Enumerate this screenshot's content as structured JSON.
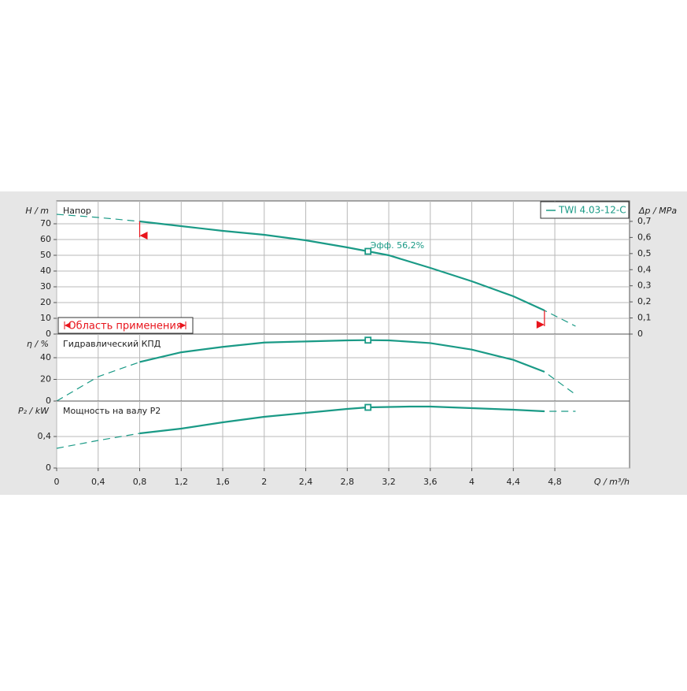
{
  "chart_data": [
    {
      "type": "line",
      "title": "Напор",
      "ylabel": "H / m",
      "y2label": "Δp / MPa",
      "x": [
        0,
        0.4,
        0.8,
        1.2,
        1.6,
        2.0,
        2.4,
        2.8,
        3.0,
        3.2,
        3.6,
        4.0,
        4.4,
        4.7,
        5.0
      ],
      "series": [
        {
          "name": "TWI 4.03-12-C",
          "color": "#1a9a86",
          "values": [
            76,
            74,
            71.5,
            68.5,
            65.5,
            63,
            59.5,
            55,
            52.5,
            50,
            42,
            33.5,
            24,
            15,
            5
          ]
        }
      ],
      "ylim": [
        0,
        84.5
      ],
      "yticks": [
        0,
        10,
        20,
        30,
        40,
        50,
        60,
        70
      ],
      "y2lim": [
        0,
        0.827
      ],
      "y2ticks": [
        0,
        {
          "value": 0.1,
          "label": "0,1"
        },
        {
          "value": 0.2,
          "label": "0,2"
        },
        {
          "value": 0.3,
          "label": "0,3"
        },
        {
          "value": 0.4,
          "label": "0,4"
        },
        {
          "value": 0.5,
          "label": "0,5"
        },
        {
          "value": 0.6,
          "label": "0,6"
        },
        {
          "value": 0.7,
          "label": "0,7"
        }
      ],
      "operating_range": [
        0.8,
        4.7
      ],
      "range_label": "Область применения",
      "duty_point": {
        "x": 3.0,
        "y": 52.5
      },
      "annotation": "Эфф.  56,2%",
      "grid": true,
      "legend": "top-right"
    },
    {
      "type": "line",
      "title": "Гидравлический КПД",
      "ylabel": "η / %",
      "x": [
        0,
        0.4,
        0.8,
        1.2,
        1.6,
        2.0,
        2.4,
        2.8,
        3.0,
        3.2,
        3.6,
        4.0,
        4.4,
        4.7,
        5.0
      ],
      "series": [
        {
          "color": "#1a9a86",
          "values": [
            0,
            22.5,
            36,
            45,
            50,
            54,
            55,
            56,
            56.2,
            56,
            53.5,
            47.5,
            38,
            27,
            6
          ]
        }
      ],
      "ylim": [
        0,
        61.8
      ],
      "yticks": [
        0,
        20,
        40
      ],
      "duty_point": {
        "x": 3.0,
        "y": 56.2
      },
      "grid": true
    },
    {
      "type": "line",
      "title": "Мощность на валу P2",
      "ylabel": "P₂ / kW",
      "xlabel": "Q / m³/h",
      "x": [
        0,
        0.4,
        0.8,
        1.2,
        1.6,
        2.0,
        2.4,
        2.8,
        3.0,
        3.4,
        3.6,
        4.0,
        4.4,
        4.7,
        5.0
      ],
      "series": [
        {
          "color": "#1a9a86",
          "values": [
            0.25,
            0.35,
            0.44,
            0.5,
            0.58,
            0.65,
            0.7,
            0.75,
            0.77,
            0.78,
            0.78,
            0.76,
            0.74,
            0.72,
            0.72
          ]
        }
      ],
      "ylim": [
        0,
        0.85
      ],
      "yticks": [
        0,
        {
          "value": 0.4,
          "label": "0,4"
        }
      ],
      "xlim": [
        0,
        5.52
      ],
      "xticks": [
        0,
        {
          "value": 0.4,
          "label": "0,4"
        },
        {
          "value": 0.8,
          "label": "0,8"
        },
        {
          "value": 1.2,
          "label": "1,2"
        },
        {
          "value": 1.6,
          "label": "1,6"
        },
        2,
        {
          "value": 2.4,
          "label": "2,4"
        },
        {
          "value": 2.8,
          "label": "2,8"
        },
        {
          "value": 3.2,
          "label": "3,2"
        },
        {
          "value": 3.6,
          "label": "3,6"
        },
        4,
        {
          "value": 4.4,
          "label": "4,4"
        },
        {
          "value": 4.8,
          "label": "4,8"
        }
      ],
      "duty_point": {
        "x": 3.0,
        "y": 0.77
      },
      "grid": true
    }
  ]
}
